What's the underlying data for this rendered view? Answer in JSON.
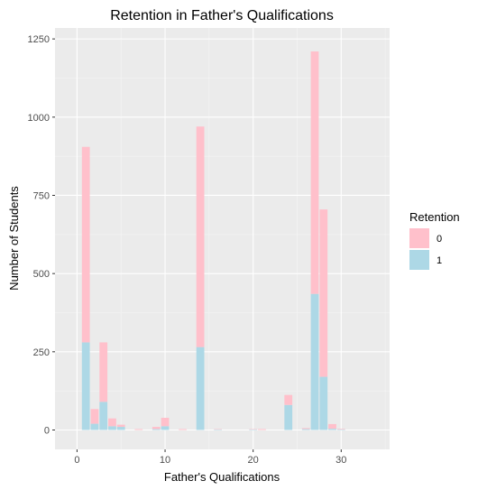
{
  "chart_data": {
    "type": "bar",
    "stacked": true,
    "title": "Retention in Father's Qualifications",
    "xlabel": "Father's Qualifications",
    "ylabel": "Number of Students",
    "xlim": [
      -2.5,
      35.5
    ],
    "ylim": [
      -62,
      1285
    ],
    "x_ticks": [
      0,
      10,
      20,
      30
    ],
    "y_ticks": [
      0,
      250,
      500,
      750,
      1000,
      1250
    ],
    "x_tick_labels": [
      "0",
      "10",
      "20",
      "30"
    ],
    "y_tick_labels": [
      "0",
      "250",
      "500",
      "750",
      "1000",
      "1250"
    ],
    "grid": true,
    "legend": {
      "title": "Retention",
      "position": "right"
    },
    "x": [
      1,
      2,
      3,
      4,
      5,
      7,
      9,
      10,
      12,
      14,
      16,
      20,
      21,
      24,
      26,
      27,
      28,
      29,
      30
    ],
    "series": [
      {
        "name": "1",
        "color": "#add8e6",
        "values": [
          280,
          20,
          90,
          12,
          10,
          0,
          3,
          12,
          0,
          265,
          2,
          2,
          0,
          80,
          3,
          435,
          170,
          4,
          2
        ]
      },
      {
        "name": "0",
        "color": "#ffc0cb",
        "values": [
          625,
          47,
          190,
          25,
          7,
          3,
          7,
          27,
          3,
          705,
          1,
          1,
          3,
          32,
          3,
          775,
          535,
          15,
          2
        ]
      }
    ]
  }
}
